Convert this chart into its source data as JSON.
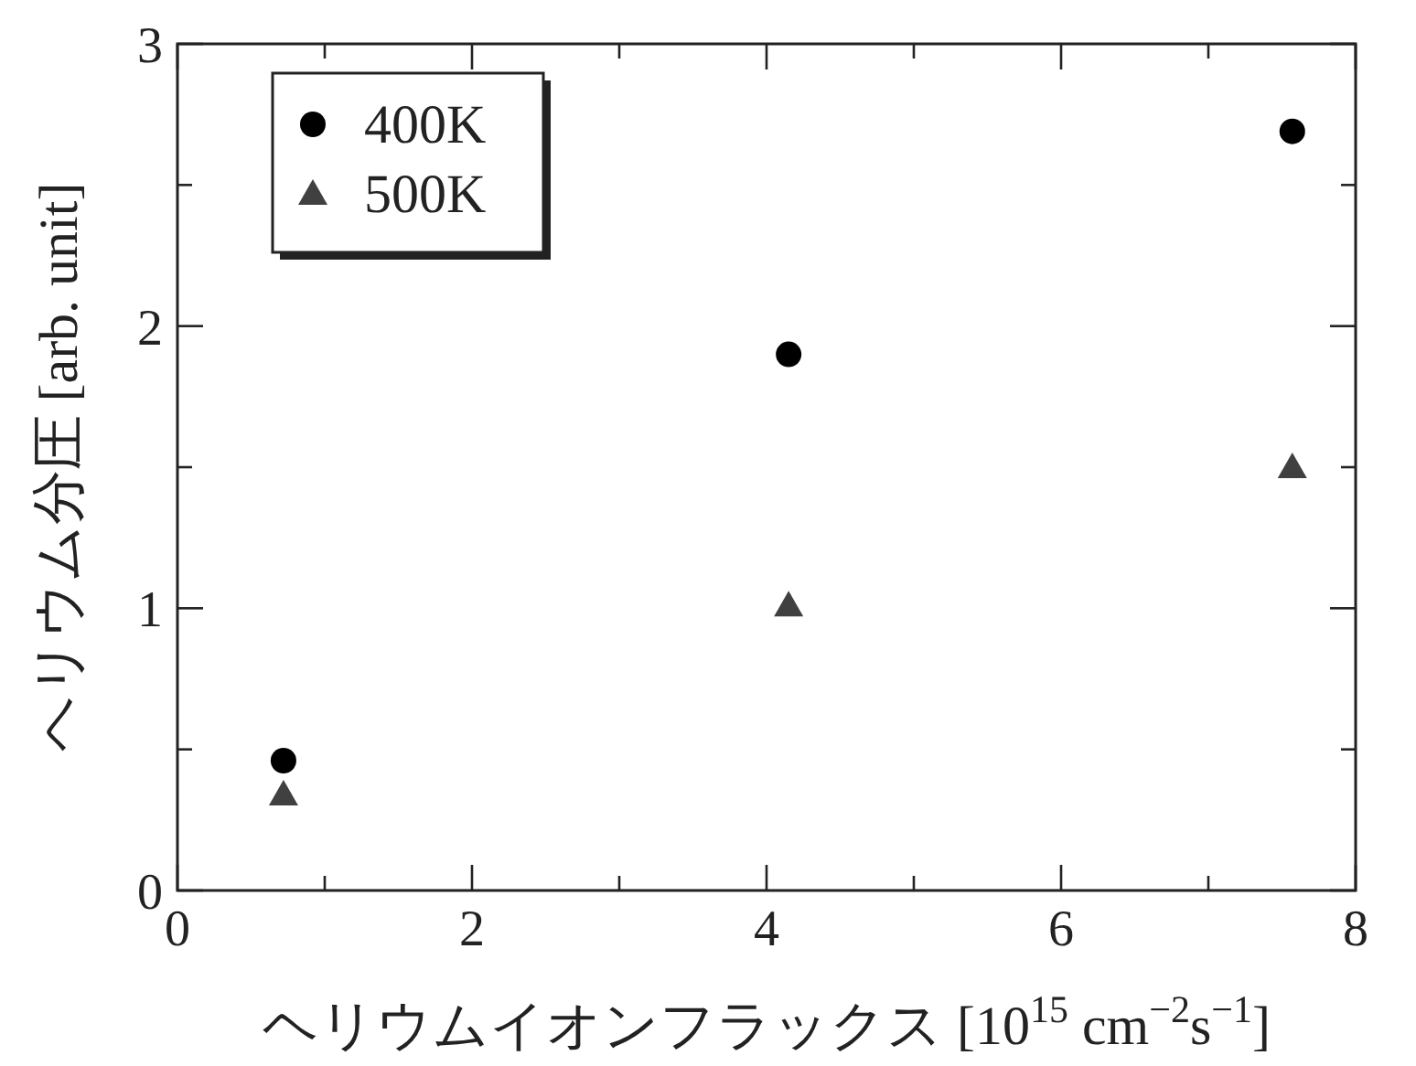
{
  "chart_data": {
    "type": "scatter",
    "xlabel": "ヘリウムイオンフラックス [10$^{15}$ cm$^{−2}$s$^{−1}$]",
    "ylabel": "ヘリウム分圧 [arb. unit]",
    "xlim": [
      0,
      8
    ],
    "xticks": [
      0,
      {
        "value": 1,
        "label": null
      },
      2,
      {
        "value": 3,
        "label": null
      },
      4,
      {
        "value": 5,
        "label": null
      },
      6,
      {
        "value": 7,
        "label": null
      },
      8
    ],
    "ylim": [
      0,
      3
    ],
    "yticks": [
      0,
      {
        "value": 0.5,
        "label": null
      },
      1,
      {
        "value": 1.5,
        "label": null
      },
      2,
      {
        "value": 2.5,
        "label": null
      },
      3
    ],
    "legend": "top left",
    "series": [
      {
        "name": "400K",
        "color": "#000000",
        "marker": "circle",
        "x": [
          0.72,
          4.15,
          7.57
        ],
        "values": [
          0.46,
          1.9,
          2.69
        ]
      },
      {
        "name": "500K",
        "color": "#404040",
        "marker": "triangle",
        "x": [
          0.72,
          4.15,
          7.57
        ],
        "values": [
          0.34,
          1.01,
          1.5
        ]
      }
    ]
  }
}
